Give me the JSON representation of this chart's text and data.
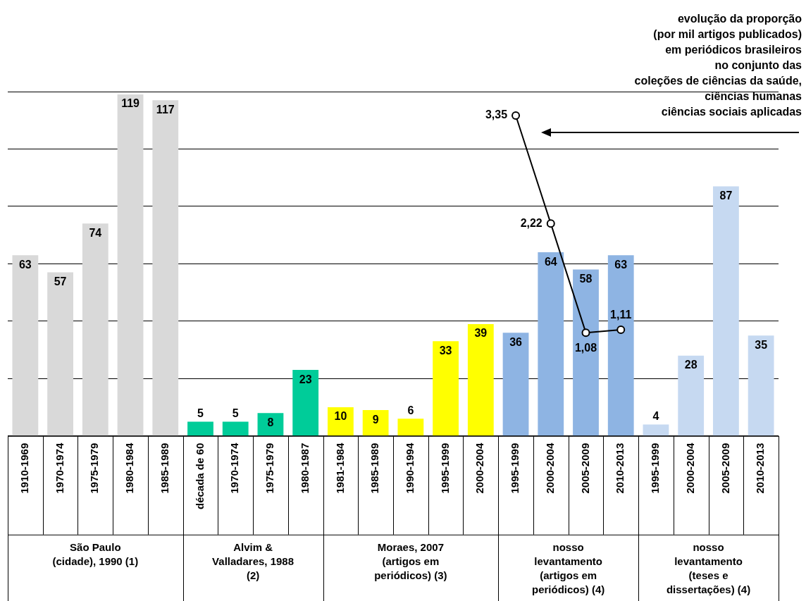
{
  "chart_data": {
    "type": "bar",
    "categories": [
      "1910-1969",
      "1970-1974",
      "1975-1979",
      "1980-1984",
      "1985-1989",
      "década de 60",
      "1970-1974",
      "1975-1979",
      "1980-1987",
      "1981-1984",
      "1985-1989",
      "1990-1994",
      "1995-1999",
      "2000-2004",
      "1995-1999",
      "2000-2004",
      "2005-2009",
      "2010-2013",
      "1995-1999",
      "2000-2004",
      "2005-2009",
      "2010-2013"
    ],
    "series": [
      {
        "values": [
          63,
          57,
          74,
          119,
          117,
          5,
          5,
          8,
          23,
          10,
          9,
          6,
          33,
          39,
          36,
          64,
          58,
          63,
          4,
          28,
          87,
          35
        ],
        "colors": [
          "#d9d9d9",
          "#d9d9d9",
          "#d9d9d9",
          "#d9d9d9",
          "#d9d9d9",
          "#00cc99",
          "#00cc99",
          "#00cc99",
          "#00cc99",
          "#ffff00",
          "#ffff00",
          "#ffff00",
          "#ffff00",
          "#ffff00",
          "#8eb4e3",
          "#8eb4e3",
          "#8eb4e3",
          "#8eb4e3",
          "#c6d9f1",
          "#c6d9f1",
          "#c6d9f1",
          "#c6d9f1"
        ]
      },
      {
        "type": "line",
        "axis": "y2",
        "name": "evolução da proporção\n(por mil artigos publicados)\nem periódicos brasileiros\nno conjunto das\ncoleções de ciências da saúde,\nciências humanas\nciências sociais aplicadas",
        "color": "#000000",
        "marker": "circle",
        "line_style": "solid",
        "values": [
          null,
          null,
          null,
          null,
          null,
          null,
          null,
          null,
          null,
          null,
          null,
          null,
          null,
          null,
          3.35,
          2.22,
          1.08,
          1.11,
          null,
          null,
          null,
          null
        ],
        "value_labels": [
          null,
          null,
          null,
          null,
          null,
          null,
          null,
          null,
          null,
          null,
          null,
          null,
          null,
          null,
          "3,35",
          "2,22",
          "1,08",
          "1,11",
          null,
          null,
          null,
          null
        ]
      }
    ],
    "ylim": [
      0,
      120
    ],
    "yticks": [
      {
        "value": 0,
        "label": null
      },
      {
        "value": 20,
        "label": null
      },
      {
        "value": 40,
        "label": null
      },
      {
        "value": 60,
        "label": null
      },
      {
        "value": 80,
        "label": null
      },
      {
        "value": 100,
        "label": null
      },
      {
        "value": 120,
        "label": null
      }
    ],
    "y2lim": [
      0,
      3.6
    ],
    "grid": "y",
    "tick_labels": "x",
    "data_labels": true,
    "annotations": [
      "São Paulo (cidade), 1990 (1)",
      "Alvim & Valladares, 1988 (2)",
      "Moraes, 2007 (artigos em periódicos) (3)",
      "nosso levantamento (artigos em periódicos) (4)",
      "nosso levantamento (teses e dissertações) (4)"
    ]
  }
}
